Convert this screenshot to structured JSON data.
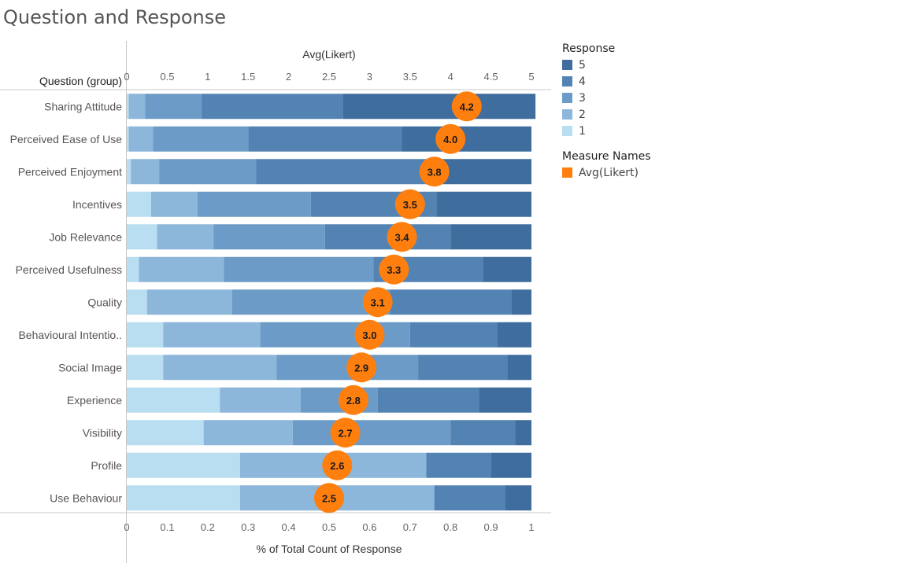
{
  "title": "Question and Response",
  "chart_data": {
    "type": "bar",
    "stacked": true,
    "orientation": "horizontal",
    "row_header": "Question (group)",
    "top_axis_label": "Avg(Likert)",
    "top_axis_ticks": [
      "0",
      "0.5",
      "1",
      "1.5",
      "2",
      "2.5",
      "3",
      "3.5",
      "4",
      "4.5",
      "5"
    ],
    "top_axis_range": [
      0,
      5
    ],
    "bottom_axis_label": "% of Total Count of Response",
    "bottom_axis_ticks": [
      "0",
      "0.1",
      "0.2",
      "0.3",
      "0.4",
      "0.5",
      "0.6",
      "0.7",
      "0.8",
      "0.9",
      "1"
    ],
    "bottom_axis_range": [
      0,
      1
    ],
    "categories": [
      "Sharing Attitude",
      "Perceived Ease of Use",
      "Perceived Enjoyment",
      "Incentives",
      "Job Relevance",
      "Perceived Usefulness",
      "Quality",
      "Behavioural Intentio..",
      "Social Image",
      "Experience",
      "Visibility",
      "Profile",
      "Use Behaviour"
    ],
    "series": [
      {
        "name": "1",
        "color": "#b9ddf1",
        "values": [
          0.005,
          0.005,
          0.01,
          0.06,
          0.075,
          0.03,
          0.05,
          0.09,
          0.09,
          0.23,
          0.19,
          0.28,
          0.28
        ]
      },
      {
        "name": "2",
        "color": "#8cb6da",
        "values": [
          0.04,
          0.06,
          0.07,
          0.115,
          0.14,
          0.21,
          0.21,
          0.24,
          0.28,
          0.2,
          0.22,
          0.46,
          0.48
        ]
      },
      {
        "name": "3",
        "color": "#6b9bc6",
        "values": [
          0.14,
          0.235,
          0.24,
          0.28,
          0.275,
          0.37,
          0.39,
          0.37,
          0.35,
          0.19,
          0.39,
          0.0,
          0.0
        ]
      },
      {
        "name": "4",
        "color": "#5383b3",
        "values": [
          0.35,
          0.38,
          0.42,
          0.31,
          0.31,
          0.27,
          0.3,
          0.215,
          0.22,
          0.25,
          0.16,
          0.16,
          0.175
        ]
      },
      {
        "name": "5",
        "color": "#3f6d9d",
        "values": [
          0.475,
          0.32,
          0.26,
          0.235,
          0.2,
          0.12,
          0.05,
          0.085,
          0.06,
          0.13,
          0.04,
          0.1,
          0.065
        ]
      }
    ],
    "avg_likert": {
      "name": "Avg(Likert)",
      "color": "#ff7f0e",
      "values": [
        4.2,
        4.0,
        3.8,
        3.5,
        3.4,
        3.3,
        3.1,
        3.0,
        2.9,
        2.8,
        2.7,
        2.6,
        2.5
      ],
      "labels": [
        "4.2",
        "4.0",
        "3.8",
        "3.5",
        "3.4",
        "3.3",
        "3.1",
        "3.0",
        "2.9",
        "2.8",
        "2.7",
        "2.6",
        "2.5"
      ]
    }
  },
  "legend": {
    "response_title": "Response",
    "response_items": [
      {
        "label": "5",
        "color": "#3f6d9d"
      },
      {
        "label": "4",
        "color": "#5383b3"
      },
      {
        "label": "3",
        "color": "#6b9bc6"
      },
      {
        "label": "2",
        "color": "#8cb6da"
      },
      {
        "label": "1",
        "color": "#b9ddf1"
      }
    ],
    "measure_title": "Measure Names",
    "measure_items": [
      {
        "label": "Avg(Likert)",
        "color": "#ff7f0e"
      }
    ]
  }
}
